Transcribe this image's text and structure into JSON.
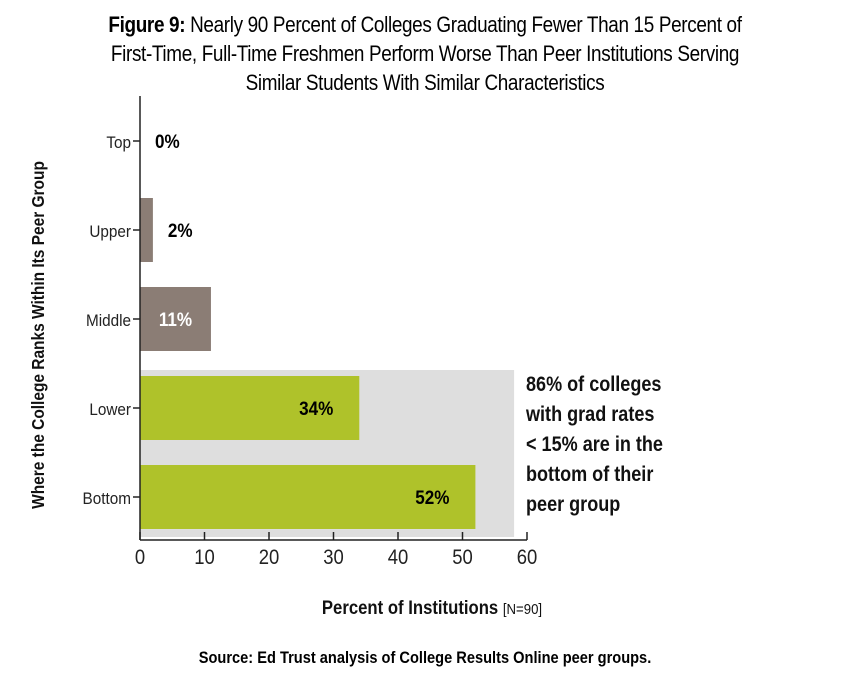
{
  "figure": {
    "label": "Figure 9:",
    "title_line1": "Nearly 90 Percent of Colleges Graduating Fewer Than 15 Percent of",
    "title_line2": "First-Time, Full-Time Freshmen Perform Worse Than Peer Institutions Serving",
    "title_line3": "Similar Students With Similar Characteristics",
    "source": "Source: Ed Trust analysis of College Results Online peer groups."
  },
  "colors": {
    "upper_bars": "#8b7d75",
    "lower_bars": "#afc22a",
    "highlight_band": "#dedede",
    "axis": "#222222"
  },
  "chart_data": {
    "type": "bar",
    "orientation": "horizontal",
    "categories": [
      "Top",
      "Upper",
      "Middle",
      "Lower",
      "Bottom"
    ],
    "values": [
      0,
      2,
      11,
      34,
      52
    ],
    "data_labels": [
      "0%",
      "2%",
      "11%",
      "34%",
      "52%"
    ],
    "xlabel": "Percent of Institutions",
    "xlabel_note": "[N=90]",
    "ylabel": "Where the College Ranks Within Its Peer Group",
    "xlim": [
      0,
      60
    ],
    "xticks": [
      0,
      10,
      20,
      30,
      40,
      50,
      60
    ],
    "grid": false,
    "highlight": {
      "categories": [
        "Lower",
        "Bottom"
      ],
      "x_end": 58,
      "annotation_lines": [
        "86% of colleges",
        "with grad rates",
        "< 15% are in the",
        "bottom of their",
        "peer group"
      ]
    }
  }
}
